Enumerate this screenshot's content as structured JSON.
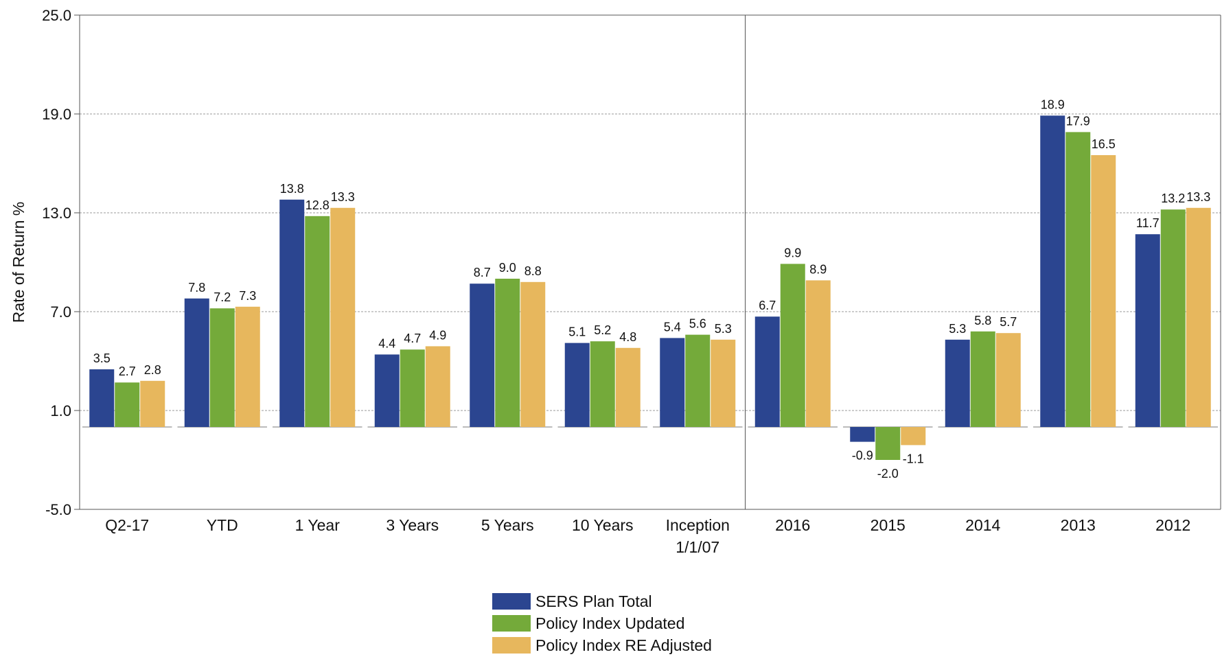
{
  "chart_data": {
    "type": "bar",
    "ylabel": "Rate of Return %",
    "xlabel": "",
    "title": "",
    "ylim": [
      -5.0,
      25.0
    ],
    "yticks": [
      "25.0",
      "19.0",
      "13.0",
      "7.0",
      "1.0",
      "-5.0"
    ],
    "ytick_values": [
      25.0,
      19.0,
      13.0,
      7.0,
      1.0,
      -5.0
    ],
    "grid": true,
    "legend_position": "bottom-center",
    "categories": [
      [
        "Q2-17"
      ],
      [
        "YTD"
      ],
      [
        "1 Year"
      ],
      [
        "3 Years"
      ],
      [
        "5 Years"
      ],
      [
        "10 Years"
      ],
      [
        "Inception",
        "1/1/07"
      ],
      [
        "2016"
      ],
      [
        "2015"
      ],
      [
        "2014"
      ],
      [
        "2013"
      ],
      [
        "2012"
      ]
    ],
    "series": [
      {
        "name": "SERS Plan Total",
        "color": "#2B4590",
        "values": [
          3.5,
          7.8,
          13.8,
          4.4,
          8.7,
          5.1,
          5.4,
          6.7,
          -0.9,
          5.3,
          18.9,
          11.7
        ],
        "labels": [
          "3.5",
          "7.8",
          "13.8",
          "4.4",
          "8.7",
          "5.1",
          "5.4",
          "6.7",
          "-0.9",
          "5.3",
          "18.9",
          "11.7"
        ]
      },
      {
        "name": "Policy Index Updated",
        "color": "#74AA3A",
        "values": [
          2.7,
          7.2,
          12.8,
          4.7,
          9.0,
          5.2,
          5.6,
          9.9,
          -2.0,
          5.8,
          17.9,
          13.2
        ],
        "labels": [
          "2.7",
          "7.2",
          "12.8",
          "4.7",
          "9.0",
          "5.2",
          "5.6",
          "9.9",
          "-2.0",
          "5.8",
          "17.9",
          "13.2"
        ]
      },
      {
        "name": "Policy Index RE Adjusted",
        "color": "#E7B75D",
        "values": [
          2.8,
          7.3,
          13.3,
          4.9,
          8.8,
          4.8,
          5.3,
          8.9,
          -1.1,
          5.7,
          16.5,
          13.3
        ],
        "labels": [
          "2.8",
          "7.3",
          "13.3",
          "4.9",
          "8.8",
          "4.8",
          "5.3",
          "8.9",
          "-1.1",
          "5.7",
          "16.5",
          "13.3"
        ]
      }
    ],
    "divider_after_category": 6
  }
}
